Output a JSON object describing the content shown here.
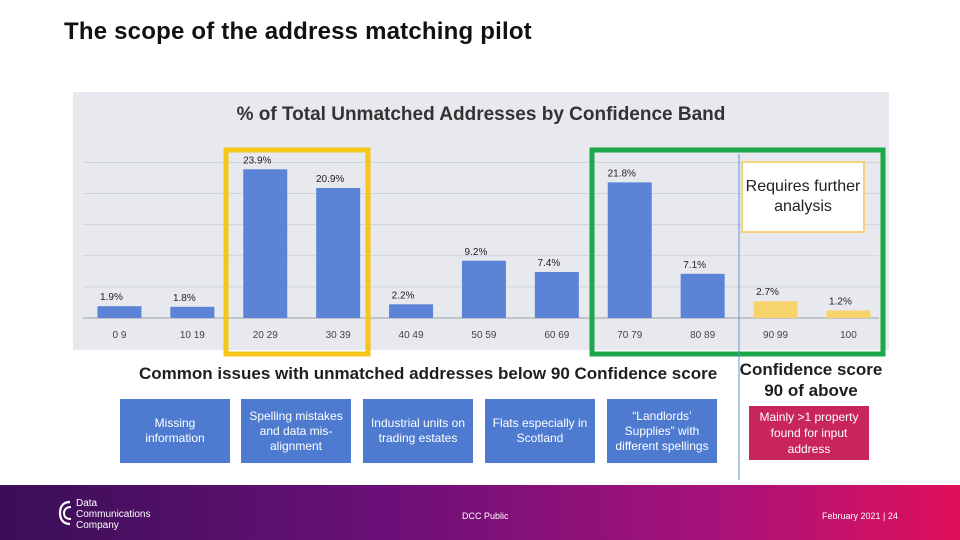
{
  "slide": {
    "title": "The scope of the address matching pilot"
  },
  "chart_data": {
    "type": "bar",
    "title": "% of Total Unmatched Addresses by Confidence Band",
    "categories": [
      "0 9",
      "10 19",
      "20 29",
      "30 39",
      "40 49",
      "50 59",
      "60 69",
      "70 79",
      "80 89",
      "90 99",
      "100"
    ],
    "values": [
      1.9,
      1.8,
      23.9,
      20.9,
      2.2,
      9.2,
      7.4,
      21.8,
      7.1,
      2.7,
      1.2
    ],
    "value_labels": [
      "1.9%",
      "1.8%",
      "23.9%",
      "20.9%",
      "2.2%",
      "9.2%",
      "7.4%",
      "21.8%",
      "7.1%",
      "2.7%",
      "1.2%"
    ],
    "ylim": [
      0,
      27
    ],
    "grid": true,
    "colors": {
      "blue": "#5b84d6",
      "yellow": "#f6d36b",
      "highlight_yellow": "#f5c518",
      "highlight_green": "#1aa84b"
    }
  },
  "annotations": {
    "requires": "Requires further analysis",
    "issues_title": "Common issues with unmatched addresses below 90 Confidence score",
    "confidence_title": "Confidence score 90 of above",
    "issues": [
      "Missing information",
      "Spelling mistakes and data mis-alignment",
      "Industrial units on trading estates",
      "Flats especially in Scotland",
      "“Landlords’ Supplies” with different spellings"
    ],
    "mainly": "Mainly >1 property found for input address"
  },
  "footer": {
    "company": "Data Communications Company",
    "classification": "DCC Public",
    "date_page": "February 2021  |  24"
  }
}
